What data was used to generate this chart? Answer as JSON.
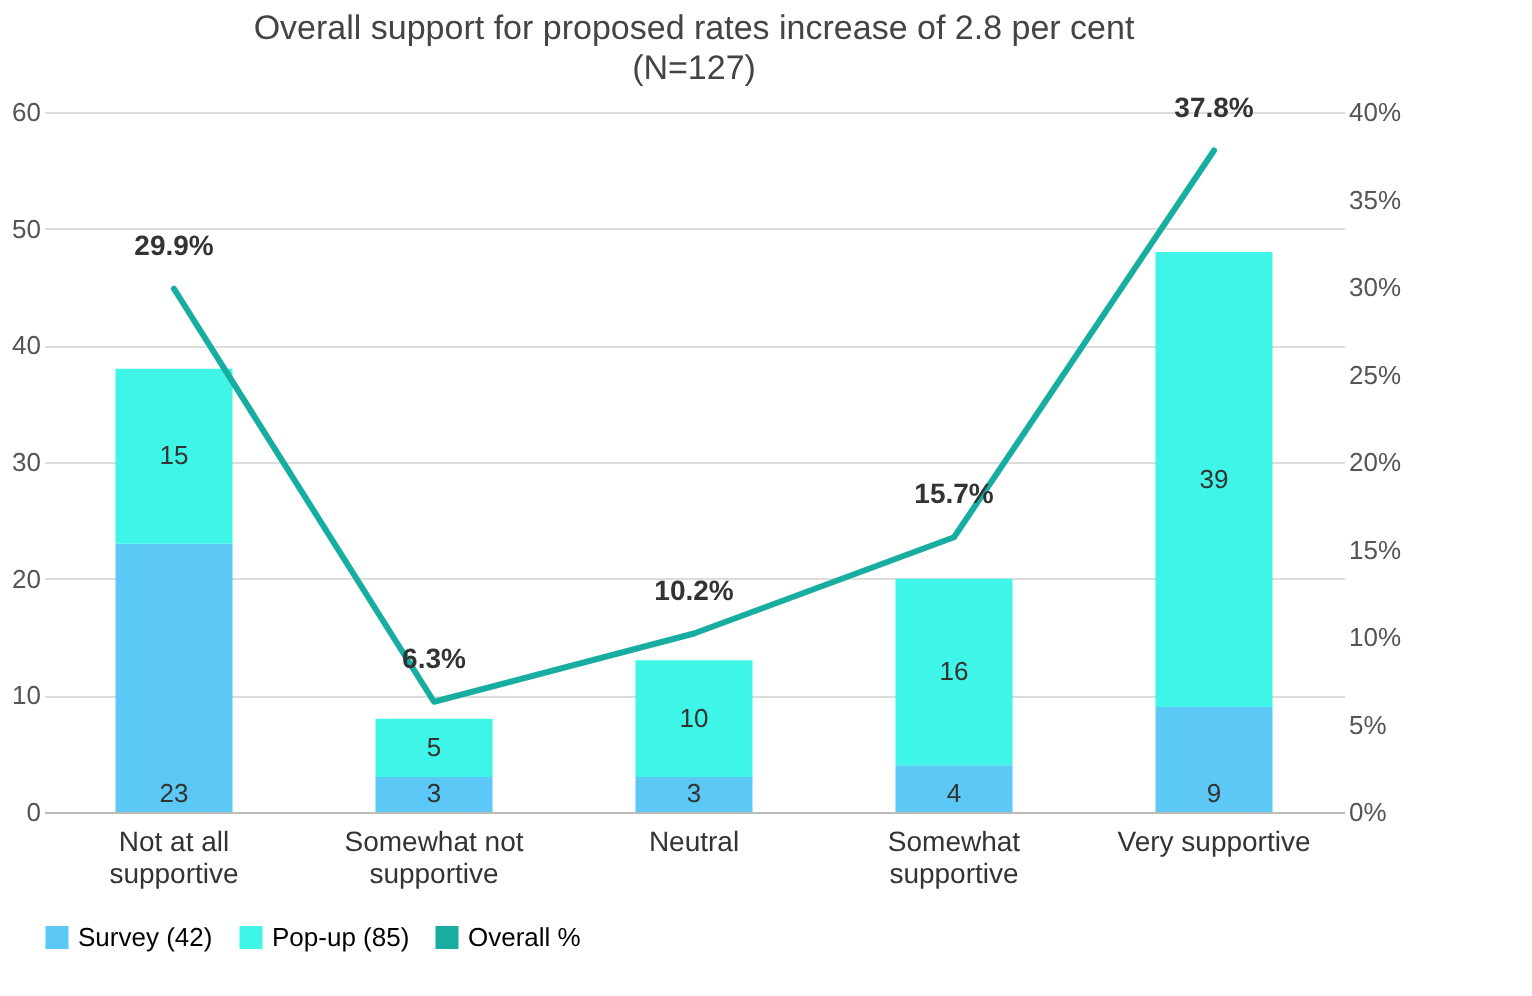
{
  "chart_data": {
    "type": "bar",
    "title": "Overall support for proposed rates increase of 2.8 per cent",
    "subtitle": "(N=127)",
    "categories": [
      "Not at all supportive",
      "Somewhat not supportive",
      "Neutral",
      "Somewhat supportive",
      "Very supportive"
    ],
    "stacked": true,
    "series": [
      {
        "name": "Survey (42)",
        "color": "#5bc8f5",
        "values": [
          23,
          3,
          3,
          4,
          9
        ]
      },
      {
        "name": "Pop-up (85)",
        "color": "#3ff5e8",
        "values": [
          15,
          5,
          10,
          16,
          39
        ]
      },
      {
        "name": "Overall %",
        "type": "line",
        "axis": "y2",
        "color": "#17ada0",
        "values": [
          29.9,
          6.3,
          10.2,
          15.7,
          37.8
        ],
        "value_labels": [
          "29.9%",
          "6.3%",
          "10.2%",
          "15.7%",
          "37.8%"
        ]
      }
    ],
    "data_labels": true,
    "ylim": [
      0,
      60
    ],
    "yticks": [
      0,
      10,
      20,
      30,
      40,
      50,
      60
    ],
    "y2lim": [
      0,
      40
    ],
    "y2ticks": [
      {
        "value": 0,
        "label": "0%"
      },
      {
        "value": 5,
        "label": "5%"
      },
      {
        "value": 10,
        "label": "10%"
      },
      {
        "value": 15,
        "label": "15%"
      },
      {
        "value": 20,
        "label": "20%"
      },
      {
        "value": 25,
        "label": "25%"
      },
      {
        "value": 30,
        "label": "30%"
      },
      {
        "value": 35,
        "label": "35%"
      },
      {
        "value": 40,
        "label": "40%"
      }
    ],
    "grid": "y",
    "legend": "bottom",
    "marker": "none"
  }
}
